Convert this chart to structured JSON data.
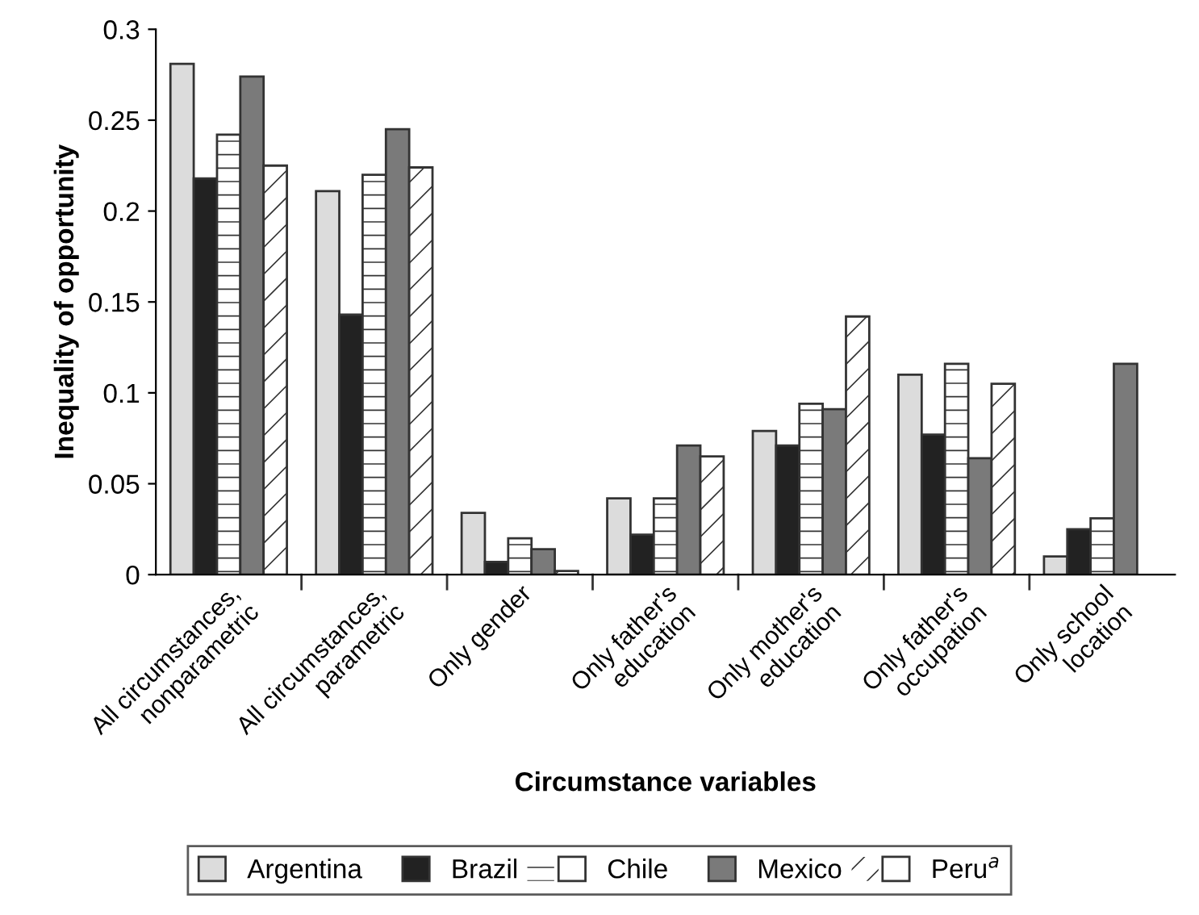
{
  "chart_data": {
    "type": "bar",
    "xlabel": "Circumstance variables",
    "ylabel": "Inequality of opportunity",
    "categories": [
      "All circumstances,\nnonparametric",
      "All circumstances,\nparametric",
      "Only gender",
      "Only father's\neducation",
      "Only mother's\neducation",
      "Only father's\noccupation",
      "Only school\nlocation"
    ],
    "series": [
      {
        "name": "Argentina",
        "color": "#dcdcdc",
        "values": [
          0.281,
          0.211,
          0.034,
          0.042,
          0.079,
          0.11,
          0.01
        ]
      },
      {
        "name": "Brazil",
        "color": "#222222",
        "values": [
          0.218,
          0.143,
          0.007,
          0.022,
          0.071,
          0.077,
          0.025
        ]
      },
      {
        "name": "Chile",
        "color": "#ffffff",
        "values": [
          0.242,
          0.22,
          0.02,
          0.042,
          0.094,
          0.116,
          0.031
        ]
      },
      {
        "name": "Mexico",
        "color": "#7a7a7a",
        "values": [
          0.274,
          0.245,
          0.014,
          0.071,
          0.091,
          0.064,
          0.116
        ]
      },
      {
        "name": "Peru$^{a}$",
        "color": "#ffffff",
        "values": [
          0.225,
          0.224,
          0.002,
          0.065,
          0.142,
          0.105,
          null
        ]
      }
    ],
    "ylim": [
      0,
      0.3
    ],
    "yticks": [
      0,
      {
        "value": 0.05,
        "label": "0.05"
      },
      {
        "value": 0.1,
        "label": "0.1"
      },
      {
        "value": 0.15,
        "label": "0.15"
      },
      {
        "value": 0.2,
        "label": "0.2"
      },
      {
        "value": 0.25,
        "label": "0.25"
      },
      {
        "value": 0.3,
        "label": "0.3"
      }
    ],
    "grid": false,
    "legend": "bottom"
  }
}
